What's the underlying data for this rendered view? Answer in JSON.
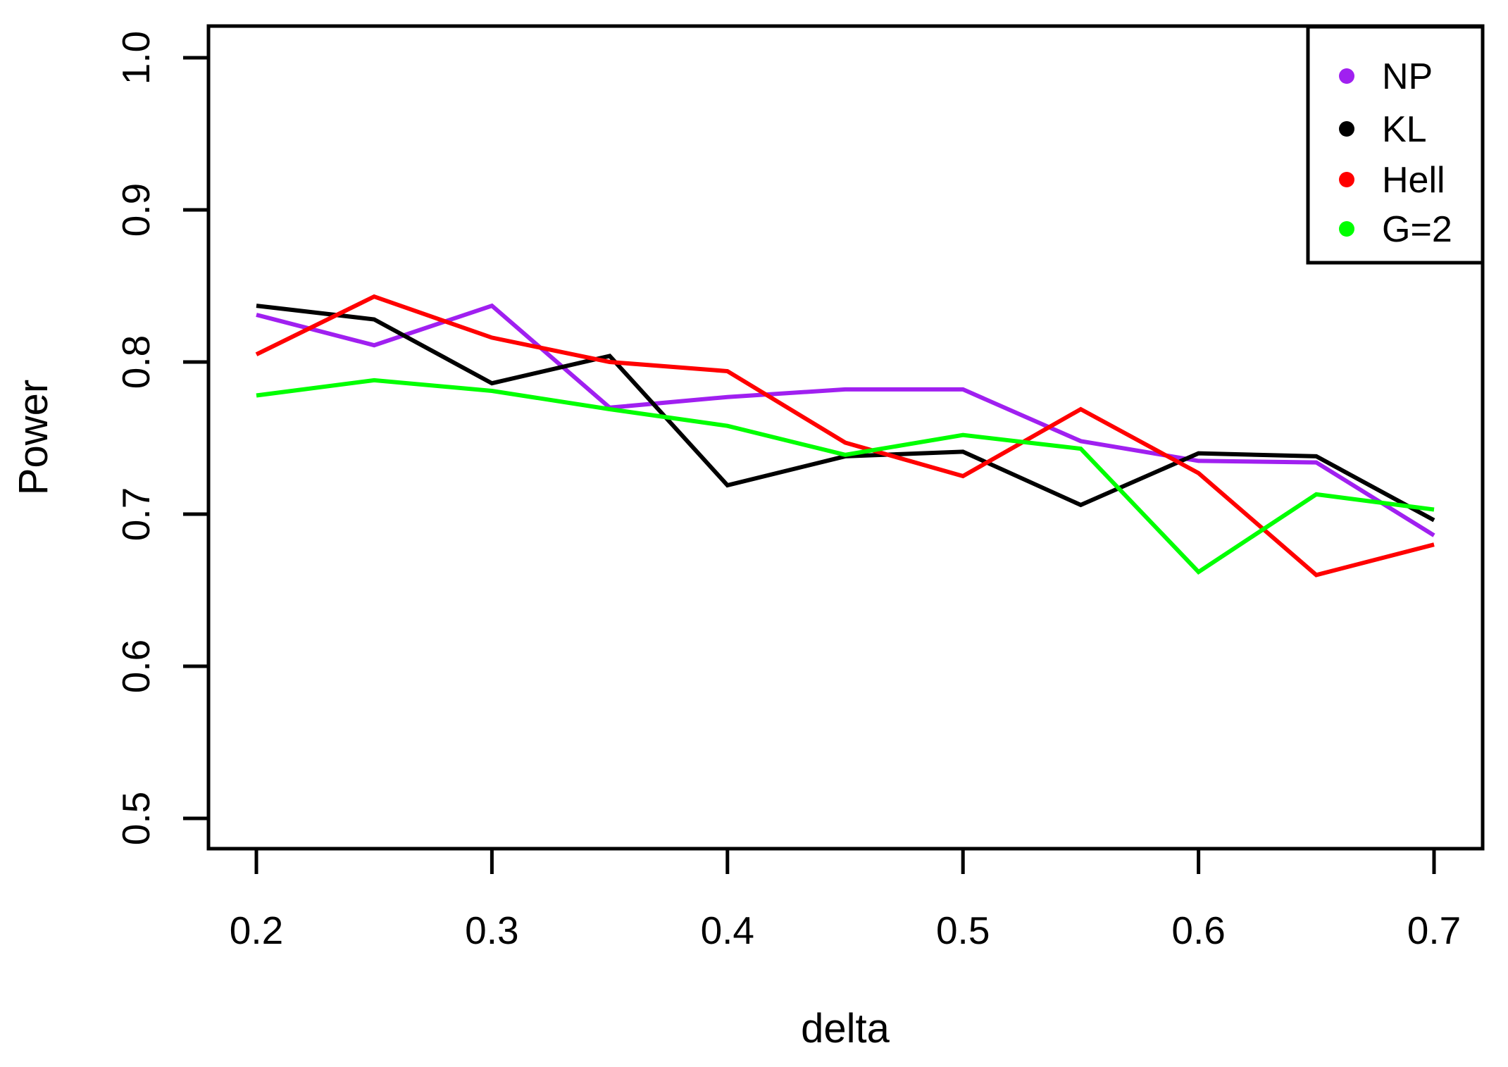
{
  "chart_data": {
    "type": "line",
    "title": "",
    "xlabel": "delta",
    "ylabel": "Power",
    "x": [
      0.2,
      0.25,
      0.3,
      0.35,
      0.4,
      0.45,
      0.5,
      0.55,
      0.6,
      0.65,
      0.7
    ],
    "series": [
      {
        "name": "NP",
        "color": "#A020F0",
        "values": [
          0.831,
          0.811,
          0.837,
          0.77,
          0.777,
          0.782,
          0.782,
          0.748,
          0.735,
          0.734,
          0.686
        ]
      },
      {
        "name": "KL",
        "color": "#000000",
        "values": [
          0.837,
          0.828,
          0.786,
          0.804,
          0.719,
          0.738,
          0.741,
          0.706,
          0.74,
          0.738,
          0.696
        ]
      },
      {
        "name": "Hell",
        "color": "#FF0000",
        "values": [
          0.805,
          0.843,
          0.816,
          0.8,
          0.794,
          0.747,
          0.725,
          0.769,
          0.727,
          0.66,
          0.68
        ]
      },
      {
        "name": "G=2",
        "color": "#00FF00",
        "values": [
          0.778,
          0.788,
          0.781,
          0.769,
          0.758,
          0.739,
          0.752,
          0.743,
          0.662,
          0.713,
          0.703
        ]
      }
    ],
    "x_ticks": [
      "0.2",
      "0.3",
      "0.4",
      "0.5",
      "0.6",
      "0.7"
    ],
    "x_tick_values": [
      0.2,
      0.3,
      0.4,
      0.5,
      0.6,
      0.7
    ],
    "y_ticks": [
      "0.5",
      "0.6",
      "0.7",
      "0.8",
      "0.9",
      "1.0"
    ],
    "y_tick_values": [
      0.5,
      0.6,
      0.7,
      0.8,
      0.9,
      1.0
    ],
    "xlim": [
      0.2,
      0.7
    ],
    "ylim": [
      0.5,
      1.0
    ],
    "grid": false,
    "legend_position": "top-right",
    "legend": [
      {
        "label": "NP",
        "color": "#A020F0"
      },
      {
        "label": "KL",
        "color": "#000000"
      },
      {
        "label": "Hell",
        "color": "#FF0000"
      },
      {
        "label": "G=2",
        "color": "#00FF00"
      }
    ],
    "axis_color": "#000000",
    "background_color": "#FFFFFF"
  }
}
